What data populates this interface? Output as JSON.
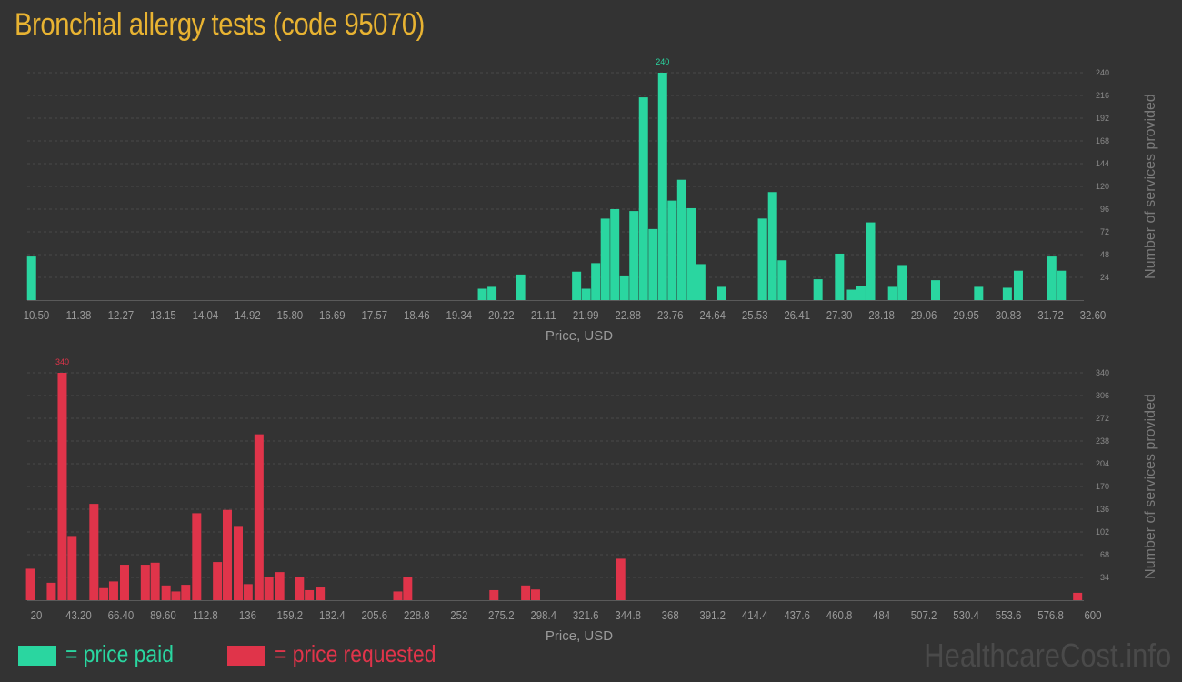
{
  "title": "Bronchial allergy tests (code 95070)",
  "colors": {
    "paid": "#2ad6a0",
    "requested": "#e0344a",
    "title": "#e8b332"
  },
  "legend": {
    "paid": "= price paid",
    "requested": "= price requested"
  },
  "watermark": "HealthcareCost.info",
  "chart_data": [
    {
      "type": "bar",
      "series_color": "paid",
      "xlabel": "Price, USD",
      "ylabel": "Number of services provided",
      "grid": true,
      "xlim": [
        10.5,
        32.6
      ],
      "ylim": [
        0,
        240
      ],
      "x_ticks": [
        "10.50",
        "11.38",
        "12.27",
        "13.15",
        "14.04",
        "14.92",
        "15.80",
        "16.69",
        "17.57",
        "18.46",
        "19.34",
        "20.22",
        "21.11",
        "21.99",
        "22.88",
        "23.76",
        "24.64",
        "25.53",
        "26.41",
        "27.30",
        "28.18",
        "29.06",
        "29.95",
        "30.83",
        "31.72",
        "32.60"
      ],
      "y_ticks": [
        24,
        48,
        72,
        96,
        120,
        144,
        168,
        192,
        216,
        240
      ],
      "max_label": "240",
      "bars": [
        {
          "x": 10.59,
          "y": 46
        },
        {
          "x": 20.02,
          "y": 12
        },
        {
          "x": 20.22,
          "y": 14
        },
        {
          "x": 20.82,
          "y": 27
        },
        {
          "x": 21.99,
          "y": 30
        },
        {
          "x": 22.19,
          "y": 12
        },
        {
          "x": 22.39,
          "y": 39
        },
        {
          "x": 22.59,
          "y": 86
        },
        {
          "x": 22.79,
          "y": 96
        },
        {
          "x": 22.99,
          "y": 26
        },
        {
          "x": 23.19,
          "y": 94
        },
        {
          "x": 23.39,
          "y": 214
        },
        {
          "x": 23.59,
          "y": 75
        },
        {
          "x": 23.79,
          "y": 240
        },
        {
          "x": 23.99,
          "y": 105
        },
        {
          "x": 24.19,
          "y": 127
        },
        {
          "x": 24.39,
          "y": 97
        },
        {
          "x": 24.59,
          "y": 38
        },
        {
          "x": 25.03,
          "y": 14
        },
        {
          "x": 25.88,
          "y": 86
        },
        {
          "x": 25.88,
          "y": 86
        },
        {
          "x": 26.09,
          "y": 114
        },
        {
          "x": 26.29,
          "y": 42
        },
        {
          "x": 27.04,
          "y": 22
        },
        {
          "x": 27.49,
          "y": 49
        },
        {
          "x": 27.74,
          "y": 11
        },
        {
          "x": 27.94,
          "y": 15
        },
        {
          "x": 28.14,
          "y": 82
        },
        {
          "x": 28.6,
          "y": 14
        },
        {
          "x": 28.8,
          "y": 37
        },
        {
          "x": 29.5,
          "y": 21
        },
        {
          "x": 30.4,
          "y": 14
        },
        {
          "x": 31.0,
          "y": 13
        },
        {
          "x": 31.23,
          "y": 31
        },
        {
          "x": 31.93,
          "y": 46
        },
        {
          "x": 32.13,
          "y": 31
        }
      ]
    },
    {
      "type": "bar",
      "series_color": "requested",
      "xlabel": "Price, USD",
      "ylabel": "Number of services provided",
      "grid": true,
      "xlim": [
        20,
        600
      ],
      "ylim": [
        0,
        340
      ],
      "x_ticks": [
        "20",
        "43.20",
        "66.40",
        "89.60",
        "112.8",
        "136",
        "159.2",
        "182.4",
        "205.6",
        "228.8",
        "252",
        "275.2",
        "298.4",
        "321.6",
        "344.8",
        "368",
        "391.2",
        "414.4",
        "437.6",
        "460.8",
        "484",
        "507.2",
        "530.4",
        "553.6",
        "576.8",
        "600"
      ],
      "y_ticks": [
        34,
        68,
        102,
        136,
        170,
        204,
        238,
        272,
        306,
        340
      ],
      "max_label": "340",
      "bars": [
        {
          "x": 21.8,
          "y": 47
        },
        {
          "x": 33.2,
          "y": 26
        },
        {
          "x": 39.2,
          "y": 340
        },
        {
          "x": 44.6,
          "y": 96
        },
        {
          "x": 56.6,
          "y": 144
        },
        {
          "x": 62.0,
          "y": 18
        },
        {
          "x": 67.4,
          "y": 28
        },
        {
          "x": 73.4,
          "y": 53
        },
        {
          "x": 84.8,
          "y": 53
        },
        {
          "x": 90.2,
          "y": 56
        },
        {
          "x": 96.2,
          "y": 22
        },
        {
          "x": 101.6,
          "y": 13
        },
        {
          "x": 107.0,
          "y": 23
        },
        {
          "x": 113.0,
          "y": 130
        },
        {
          "x": 124.4,
          "y": 57
        },
        {
          "x": 129.8,
          "y": 135
        },
        {
          "x": 135.8,
          "y": 111
        },
        {
          "x": 141.2,
          "y": 24
        },
        {
          "x": 147.2,
          "y": 248
        },
        {
          "x": 152.6,
          "y": 34
        },
        {
          "x": 158.6,
          "y": 42
        },
        {
          "x": 169.4,
          "y": 34
        },
        {
          "x": 174.8,
          "y": 15
        },
        {
          "x": 180.8,
          "y": 19
        },
        {
          "x": 223.4,
          "y": 13
        },
        {
          "x": 228.8,
          "y": 35
        },
        {
          "x": 276.2,
          "y": 15
        },
        {
          "x": 293.6,
          "y": 22
        },
        {
          "x": 299.0,
          "y": 16
        },
        {
          "x": 345.8,
          "y": 62
        },
        {
          "x": 596.6,
          "y": 11
        }
      ]
    }
  ]
}
